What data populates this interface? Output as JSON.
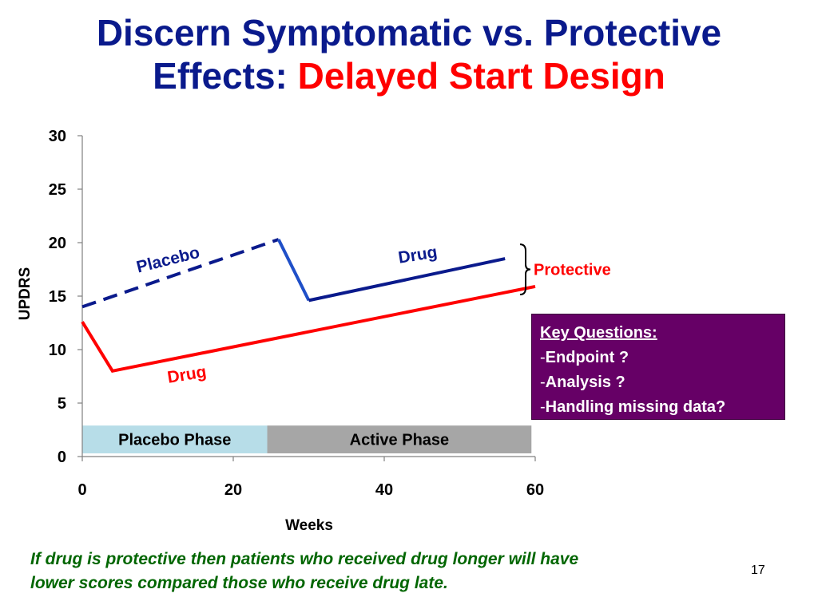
{
  "slide": {
    "title_line1": "Discern Symptomatic vs. Protective",
    "title_line2_blue": "Effects:",
    "title_line2_red": "Delayed Start Design",
    "key_questions": {
      "heading": "Key Questions:",
      "items": [
        "Endpoint ?",
        "Analysis ?",
        "Handling missing data?"
      ]
    },
    "footer_line1": "If drug is protective then patients who received drug longer will have",
    "footer_line2": "lower scores compared those who receive drug late.",
    "page_number": "17"
  },
  "chart_data": {
    "type": "line",
    "ylabel": "UPDRS",
    "xlabel": "Weeks",
    "xlim": [
      0,
      60
    ],
    "ylim": [
      0,
      30
    ],
    "xticks": [
      0,
      20,
      40,
      60
    ],
    "yticks": [
      0,
      5,
      10,
      15,
      20,
      25,
      30
    ],
    "series": [
      {
        "label": "Placebo",
        "color": "#0a1a8c",
        "dashed": true,
        "points": [
          [
            0,
            14
          ],
          [
            26,
            20.3
          ]
        ]
      },
      {
        "label": "",
        "color": "#1f4fc8",
        "dashed": false,
        "points": [
          [
            26,
            20.3
          ],
          [
            30,
            14.6
          ]
        ]
      },
      {
        "label": "Drug",
        "color": "#0a1a8c",
        "dashed": false,
        "points": [
          [
            30,
            14.6
          ],
          [
            56,
            18.5
          ]
        ]
      },
      {
        "label": "Drug",
        "color": "#ff0000",
        "dashed": false,
        "points": [
          [
            0,
            12.6
          ],
          [
            4,
            8
          ],
          [
            60,
            15.9
          ]
        ]
      }
    ],
    "annotation": {
      "label": "Protective",
      "color": "#ff0000",
      "y_range": [
        15.9,
        18.5
      ]
    },
    "phases": [
      {
        "label": "Placebo Phase",
        "x_range": [
          0,
          24.5
        ],
        "color": "#b7dde8"
      },
      {
        "label": "Active Phase",
        "x_range": [
          24.5,
          59.5
        ],
        "color": "#a6a6a6"
      }
    ]
  }
}
